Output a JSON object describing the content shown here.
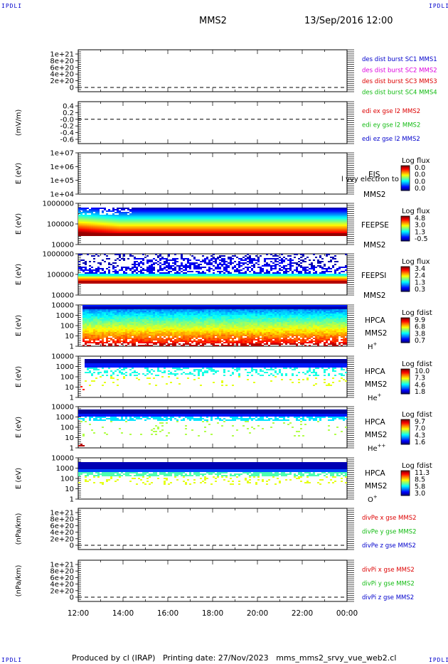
{
  "corner_label": "IPDLI",
  "header": {
    "spacecraft": "MMS2",
    "date_time": "13/Sep/2016 12:00"
  },
  "footer": {
    "produced_by": "Produced by cl (IRAP)",
    "printing_date": "Printing date: 27/Nov/2023",
    "file": "mms_mms2_srvy_vue_web2.cl"
  },
  "colors": {
    "red": "#dd0000",
    "green": "#11bb11",
    "blue": "#0000cc",
    "magenta": "#dd00dd"
  },
  "chart_data": [
    {
      "type": "line",
      "panel": "des-dist",
      "ylabel": "",
      "ticks": [
        "1e+21",
        "8e+20",
        "6e+20",
        "4e+20",
        "2e+20",
        "0"
      ],
      "ylim": [
        0,
        1e+21
      ],
      "reference_line": 0,
      "legend": [
        {
          "text": "des dist burst SC1 MMS1",
          "color": "#0000cc"
        },
        {
          "text": "des dist burst SC2 MMS2",
          "color": "#dd00dd"
        },
        {
          "text": "des dist burst SC3 MMS3",
          "color": "#dd0000"
        },
        {
          "text": "des dist burst SC4 MMS4",
          "color": "#11bb11"
        }
      ]
    },
    {
      "type": "line",
      "panel": "edi",
      "ylabel": "(mV/m)",
      "ticks": [
        "0.4",
        "0.2",
        "-0.0",
        "-0.2",
        "-0.4",
        "-0.6"
      ],
      "ylim": [
        -0.6,
        0.4
      ],
      "reference_line": 0,
      "legend": [
        {
          "text": "edi ex gse l2 MMS2",
          "color": "#dd0000"
        },
        {
          "text": "edi ey gse l2 MMS2",
          "color": "#11bb11"
        },
        {
          "text": "edi ez gse l2 MMS2",
          "color": "#0000cc"
        }
      ]
    },
    {
      "type": "heatmap",
      "panel": "EIS",
      "ylabel": "E (eV)",
      "ticks": [
        "1e+07",
        "1e+06",
        "1e+05",
        "1e+04"
      ],
      "ylim": [
        10000,
        10000000
      ],
      "scale": "log",
      "labels": [
        "EIS",
        "MMS2"
      ],
      "overlay_text": "l vvy electron to",
      "colorbar": {
        "title": "Log flux",
        "ticks": [
          "0.0",
          "0.0",
          "0.0",
          "0.0"
        ]
      },
      "values": "empty"
    },
    {
      "type": "heatmap",
      "panel": "FEEPSE",
      "ylabel": "E (eV)",
      "ticks": [
        "1000000",
        "100000",
        "10000"
      ],
      "ylim": [
        10000,
        1000000
      ],
      "scale": "log",
      "labels": [
        "FEEPSE",
        "MMS2"
      ],
      "colorbar": {
        "title": "Log flux",
        "ticks": [
          "4.8",
          "3.0",
          "1.3",
          "-0.5"
        ]
      }
    },
    {
      "type": "heatmap",
      "panel": "FEEPSI",
      "ylabel": "E (eV)",
      "ticks": [
        "1000000",
        "100000",
        "10000"
      ],
      "ylim": [
        10000,
        1000000
      ],
      "scale": "log",
      "labels": [
        "FEEPSI",
        "MMS2"
      ],
      "colorbar": {
        "title": "Log flux",
        "ticks": [
          "3.4",
          "2.4",
          "1.3",
          "0.3"
        ]
      }
    },
    {
      "type": "heatmap",
      "panel": "HPCA-H",
      "ylabel": "E (eV)",
      "ticks": [
        "10000",
        "1000",
        "100",
        "10",
        "1"
      ],
      "ylim": [
        1,
        10000
      ],
      "scale": "log",
      "labels": [
        "HPCA",
        "MMS2"
      ],
      "species": "H",
      "species_charge": "+",
      "colorbar": {
        "title": "Log fdist",
        "ticks": [
          "9.9",
          "6.8",
          "3.8",
          "0.7"
        ]
      }
    },
    {
      "type": "heatmap",
      "panel": "HPCA-He+",
      "ylabel": "E (eV)",
      "ticks": [
        "10000",
        "1000",
        "100",
        "10",
        "1"
      ],
      "ylim": [
        1,
        10000
      ],
      "scale": "log",
      "labels": [
        "HPCA",
        "MMS2"
      ],
      "species": "He",
      "species_charge": "+",
      "colorbar": {
        "title": "Log fdist",
        "ticks": [
          "10.0",
          "7.3",
          "4.6",
          "1.8"
        ]
      }
    },
    {
      "type": "heatmap",
      "panel": "HPCA-He++",
      "ylabel": "E (eV)",
      "ticks": [
        "10000",
        "1000",
        "100",
        "10",
        "1"
      ],
      "ylim": [
        1,
        10000
      ],
      "scale": "log",
      "labels": [
        "HPCA",
        "MMS2"
      ],
      "species": "He",
      "species_charge": "++",
      "colorbar": {
        "title": "Log fdist",
        "ticks": [
          "9.7",
          "7.0",
          "4.3",
          "1.6"
        ]
      }
    },
    {
      "type": "heatmap",
      "panel": "HPCA-O",
      "ylabel": "E (eV)",
      "ticks": [
        "10000",
        "1000",
        "100",
        "10",
        "1"
      ],
      "ylim": [
        1,
        10000
      ],
      "scale": "log",
      "labels": [
        "HPCA",
        "MMS2"
      ],
      "species": "O",
      "species_charge": "+",
      "colorbar": {
        "title": "Log fdist",
        "ticks": [
          "11.3",
          "8.5",
          "5.8",
          "3.0"
        ]
      }
    },
    {
      "type": "line",
      "panel": "divPe",
      "ylabel": "(nPa/km)",
      "ticks": [
        "1e+21",
        "8e+20",
        "6e+20",
        "4e+20",
        "2e+20",
        "0"
      ],
      "ylim": [
        0,
        1e+21
      ],
      "reference_line": 0,
      "legend": [
        {
          "text": "divPe x gse MMS2",
          "color": "#dd0000"
        },
        {
          "text": "divPe y gse MMS2",
          "color": "#11bb11"
        },
        {
          "text": "divPe z gse MMS2",
          "color": "#0000cc"
        }
      ]
    },
    {
      "type": "line",
      "panel": "divPi",
      "ylabel": "(nPa/km)",
      "ticks": [
        "1e+21",
        "8e+20",
        "6e+20",
        "4e+20",
        "2e+20",
        "0"
      ],
      "ylim": [
        0,
        1e+21
      ],
      "reference_line": 0,
      "legend": [
        {
          "text": "divPi x gse MMS2",
          "color": "#dd0000"
        },
        {
          "text": "divPi y gse MMS2",
          "color": "#11bb11"
        },
        {
          "text": "divPi z gse MMS2",
          "color": "#0000cc"
        }
      ]
    }
  ],
  "xaxis": {
    "ticks": [
      "12:00",
      "14:00",
      "16:00",
      "18:00",
      "20:00",
      "22:00",
      "00:00"
    ]
  }
}
